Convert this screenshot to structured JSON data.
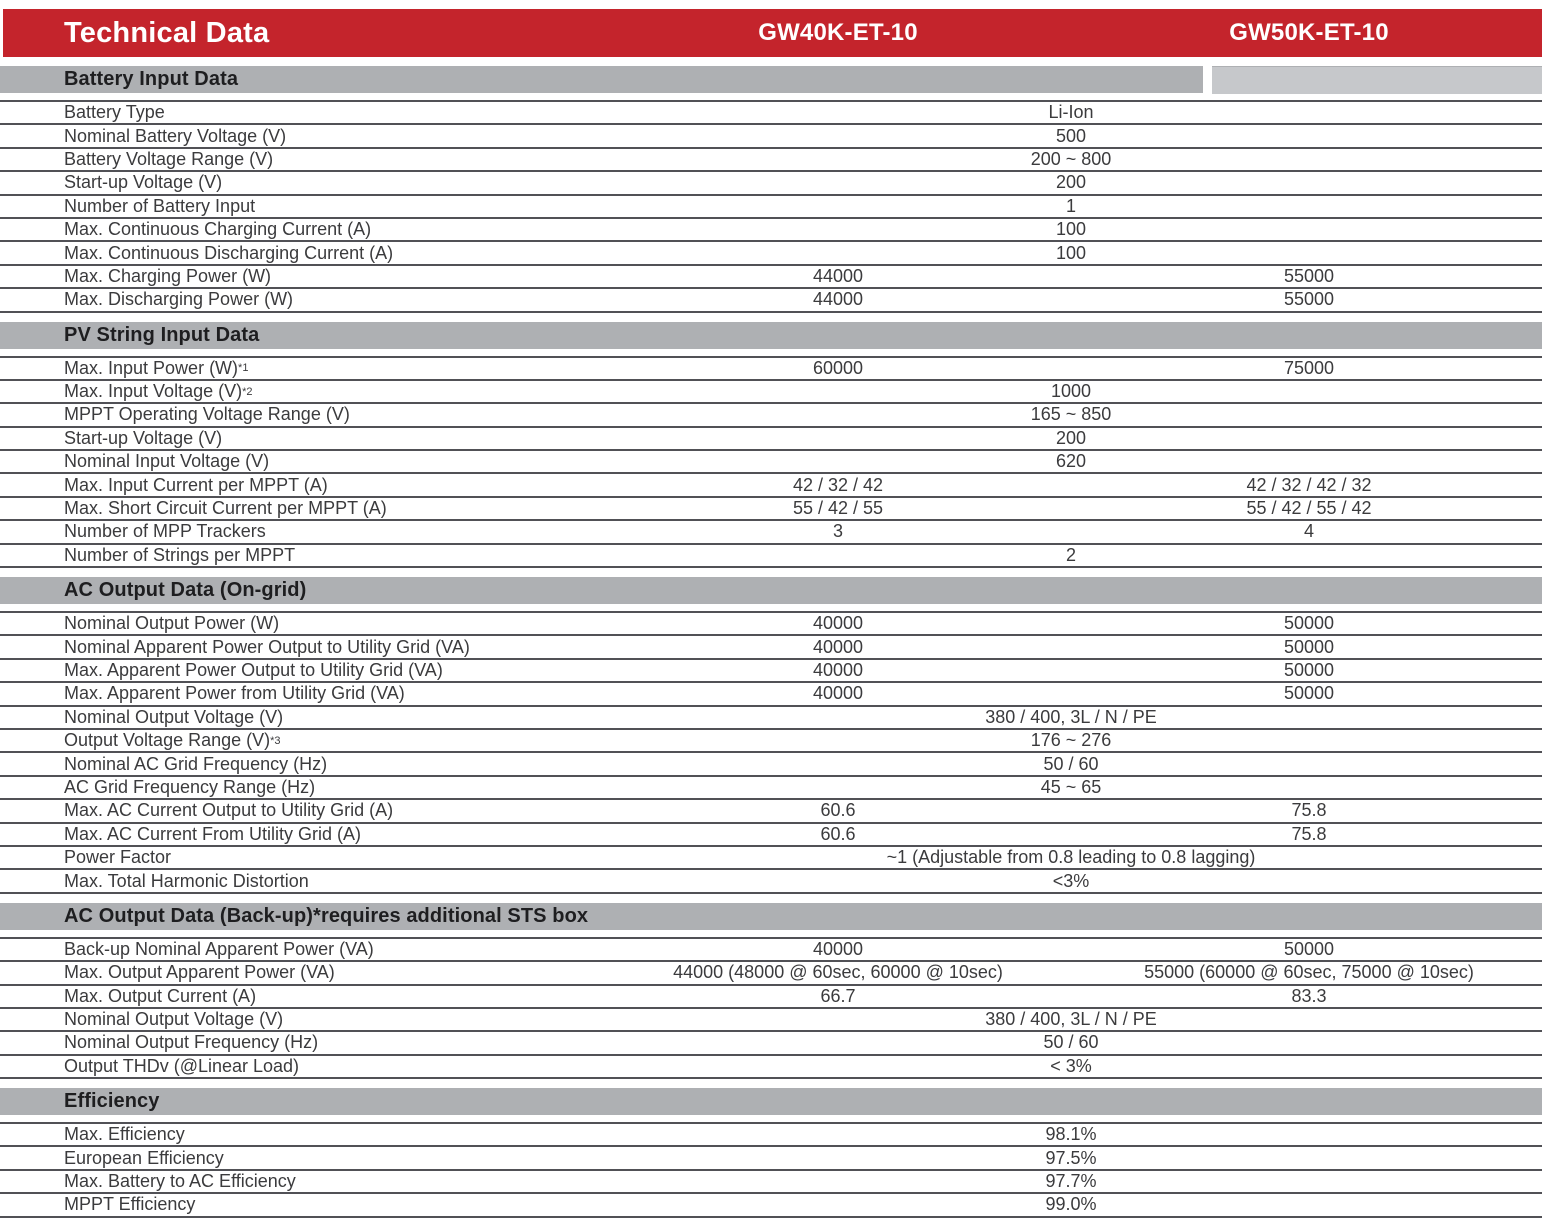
{
  "header": {
    "title": "Technical Data",
    "models": [
      "GW40K-ET-10",
      "GW50K-ET-10"
    ]
  },
  "colors": {
    "accent_red": "#C4242C",
    "section_bar_gray": "#AEB0B3",
    "section_bar_gray_light": "#C6C8CB",
    "row_line_gray": "#515156",
    "body_text": "#3B3B3D",
    "section_title_text": "#1E1E20",
    "header_text": "#FFFFFF"
  },
  "table": {
    "column_headers": [
      "GW40K-ET-10",
      "GW50K-ET-10"
    ],
    "sections": [
      {
        "title": "Battery Input Data",
        "rows": [
          {
            "label": "Battery Type",
            "shared": "Li-Ion"
          },
          {
            "label": "Nominal Battery Voltage (V)",
            "shared": "500"
          },
          {
            "label": "Battery Voltage Range (V)",
            "shared": "200 ~ 800"
          },
          {
            "label": "Start-up Voltage (V)",
            "shared": "200"
          },
          {
            "label": "Number of Battery Input",
            "shared": "1"
          },
          {
            "label": "Max. Continuous Charging Current (A)",
            "shared": "100"
          },
          {
            "label": "Max. Continuous Discharging Current (A)",
            "shared": "100"
          },
          {
            "label": "Max. Charging Power (W)",
            "col1": "44000",
            "col2": "55000"
          },
          {
            "label": "Max. Discharging Power (W)",
            "col1": "44000",
            "col2": "55000"
          }
        ]
      },
      {
        "title": "PV String Input Data",
        "rows": [
          {
            "label": "Max. Input Power (W)",
            "sup": "*1",
            "col1": "60000",
            "col2": "75000"
          },
          {
            "label": "Max. Input Voltage (V)",
            "sup": "*2",
            "shared": "1000"
          },
          {
            "label": "MPPT Operating Voltage Range (V)",
            "shared": "165 ~ 850"
          },
          {
            "label": "Start-up Voltage (V)",
            "shared": "200"
          },
          {
            "label": "Nominal Input Voltage (V)",
            "shared": "620"
          },
          {
            "label": "Max. Input Current per MPPT (A)",
            "col1": "42 / 32 / 42",
            "col2": "42 / 32 / 42 / 32"
          },
          {
            "label": "Max. Short Circuit Current per MPPT (A)",
            "col1": "55 / 42 / 55",
            "col2": "55 / 42 / 55 / 42"
          },
          {
            "label": "Number of MPP Trackers",
            "col1": "3",
            "col2": "4"
          },
          {
            "label": "Number of Strings per MPPT",
            "shared": "2"
          }
        ]
      },
      {
        "title": "AC Output Data (On-grid)",
        "rows": [
          {
            "label": "Nominal Output Power (W)",
            "col1": "40000",
            "col2": "50000"
          },
          {
            "label": "Nominal Apparent Power Output to Utility Grid (VA)",
            "col1": "40000",
            "col2": "50000"
          },
          {
            "label": "Max. Apparent Power Output to Utility Grid (VA)",
            "col1": "40000",
            "col2": "50000"
          },
          {
            "label": "Max. Apparent Power from Utility Grid (VA)",
            "col1": "40000",
            "col2": "50000"
          },
          {
            "label": "Nominal Output Voltage (V)",
            "shared": "380 / 400, 3L / N / PE"
          },
          {
            "label": "Output Voltage Range (V)",
            "sup": "*3",
            "shared": "176 ~ 276"
          },
          {
            "label": "Nominal AC Grid Frequency (Hz)",
            "shared": "50 / 60"
          },
          {
            "label": "AC Grid Frequency Range (Hz)",
            "shared": "45 ~ 65"
          },
          {
            "label": "Max. AC Current Output to Utility Grid (A)",
            "col1": "60.6",
            "col2": "75.8"
          },
          {
            "label": "Max. AC Current From Utility Grid (A)",
            "col1": "60.6",
            "col2": "75.8"
          },
          {
            "label": "Power Factor",
            "shared": "~1 (Adjustable from 0.8 leading to 0.8 lagging)"
          },
          {
            "label": "Max. Total Harmonic Distortion",
            "shared": "<3%"
          }
        ]
      },
      {
        "title": "AC Output Data (Back-up)*requires additional STS box",
        "rows": [
          {
            "label": "Back-up Nominal Apparent Power (VA)",
            "col1": "40000",
            "col2": "50000"
          },
          {
            "label": "Max. Output Apparent Power (VA)",
            "col1": "44000 (48000 @ 60sec, 60000 @ 10sec)",
            "col2": "55000 (60000 @ 60sec, 75000 @ 10sec)"
          },
          {
            "label": "Max. Output Current (A)",
            "col1": "66.7",
            "col2": "83.3"
          },
          {
            "label": "Nominal Output Voltage (V)",
            "shared": "380 / 400, 3L / N / PE"
          },
          {
            "label": "Nominal Output Frequency (Hz)",
            "shared": "50 / 60"
          },
          {
            "label": "Output THDv (@Linear Load)",
            "shared": "< 3%"
          }
        ]
      },
      {
        "title": "Efficiency",
        "rows": [
          {
            "label": "Max. Efficiency",
            "shared": "98.1%"
          },
          {
            "label": "European Efficiency",
            "shared": "97.5%"
          },
          {
            "label": "Max. Battery to AC Efficiency",
            "shared": "97.7%"
          },
          {
            "label": "MPPT Efficiency",
            "shared": "99.0%"
          }
        ]
      }
    ]
  }
}
